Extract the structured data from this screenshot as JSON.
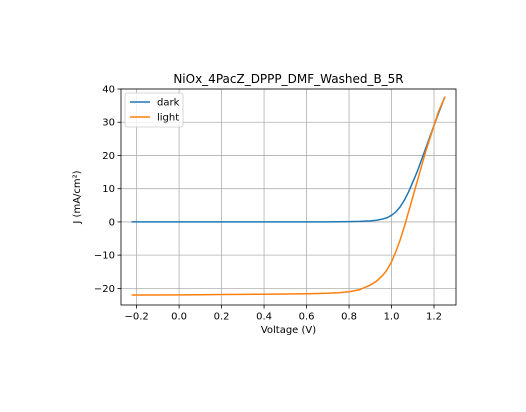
{
  "chart_data": {
    "type": "line",
    "title": "NiOx_4PacZ_DPPP_DMF_Washed_B_5R",
    "xlabel": "Voltage (V)",
    "ylabel": "J (mA/cm²)",
    "xlim": [
      -0.2735,
      1.3035
    ],
    "ylim": [
      -25,
      40
    ],
    "xticks": [
      -0.2,
      0.0,
      0.2,
      0.4,
      0.6,
      0.8,
      1.0,
      1.2
    ],
    "xtick_labels": [
      "−0.2",
      "0.0",
      "0.2",
      "0.4",
      "0.6",
      "0.8",
      "1.0",
      "1.2"
    ],
    "yticks": [
      -20,
      -10,
      0,
      10,
      20,
      30,
      40
    ],
    "ytick_labels": [
      "−20",
      "−10",
      "0",
      "10",
      "20",
      "30",
      "40"
    ],
    "grid": true,
    "legend_position": "top-left",
    "series": [
      {
        "name": "dark",
        "color": "#1f77b4",
        "x": [
          -0.22,
          -0.1,
          0.0,
          0.1,
          0.2,
          0.3,
          0.4,
          0.5,
          0.6,
          0.7,
          0.8,
          0.85,
          0.9,
          0.93,
          0.96,
          0.98,
          1.0,
          1.02,
          1.04,
          1.06,
          1.08,
          1.1,
          1.12,
          1.14,
          1.16,
          1.18,
          1.2,
          1.22,
          1.25
        ],
        "y": [
          0.0,
          0.0,
          0.0,
          0.0,
          0.0,
          0.0,
          0.0,
          0.0,
          0.0,
          0.02,
          0.08,
          0.15,
          0.3,
          0.5,
          0.9,
          1.3,
          2.0,
          3.0,
          4.5,
          6.5,
          9.0,
          12.0,
          15.0,
          18.5,
          22.0,
          25.5,
          29.0,
          32.5,
          37.5
        ]
      },
      {
        "name": "light",
        "color": "#ff7f0e",
        "x": [
          -0.22,
          -0.1,
          0.0,
          0.1,
          0.2,
          0.3,
          0.4,
          0.5,
          0.6,
          0.7,
          0.75,
          0.8,
          0.85,
          0.9,
          0.93,
          0.96,
          0.98,
          1.0,
          1.02,
          1.04,
          1.06,
          1.08,
          1.1,
          1.12,
          1.14,
          1.16,
          1.18,
          1.2,
          1.22,
          1.25
        ],
        "y": [
          -22.0,
          -22.0,
          -21.95,
          -21.9,
          -21.85,
          -21.8,
          -21.75,
          -21.7,
          -21.6,
          -21.45,
          -21.3,
          -21.0,
          -20.4,
          -19.0,
          -17.8,
          -16.0,
          -14.3,
          -12.0,
          -9.0,
          -5.5,
          -1.5,
          3.0,
          7.5,
          12.0,
          16.5,
          21.0,
          25.0,
          29.0,
          33.0,
          37.5
        ]
      }
    ]
  }
}
